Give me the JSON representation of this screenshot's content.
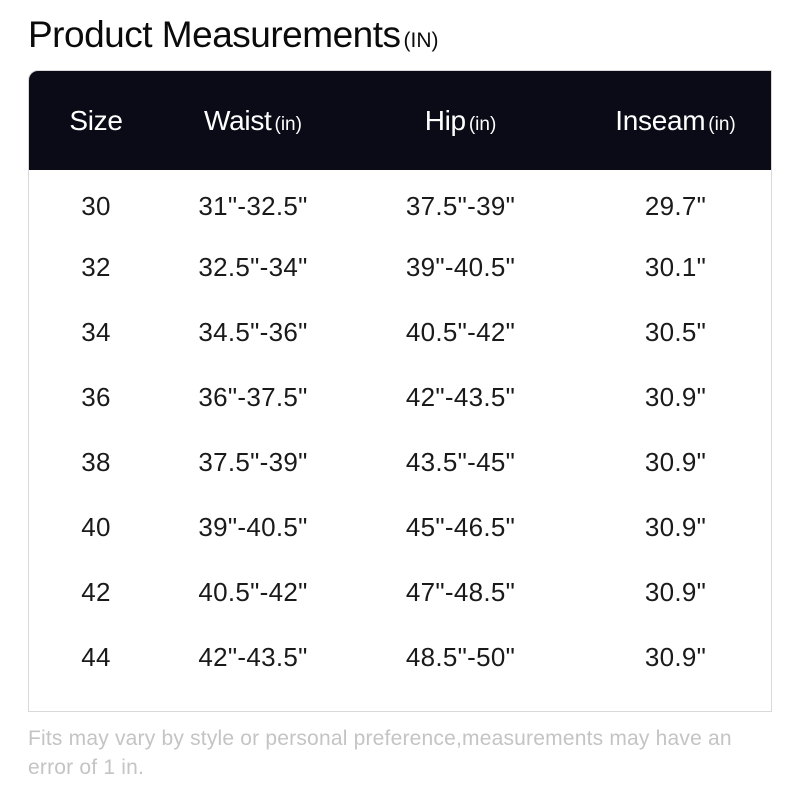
{
  "title": {
    "text": "Product Measurements",
    "unit": "(IN)"
  },
  "table": {
    "headers": [
      {
        "label": "Size",
        "unit": ""
      },
      {
        "label": "Waist",
        "unit": "(in)"
      },
      {
        "label": "Hip",
        "unit": "(in)"
      },
      {
        "label": "Inseam",
        "unit": "(in)"
      }
    ],
    "rows": [
      [
        "30",
        "31\"-32.5\"",
        "37.5\"-39\"",
        "29.7\""
      ],
      [
        "32",
        "32.5\"-34\"",
        "39\"-40.5\"",
        "30.1\""
      ],
      [
        "34",
        "34.5\"-36\"",
        "40.5\"-42\"",
        "30.5\""
      ],
      [
        "36",
        "36\"-37.5\"",
        "42\"-43.5\"",
        "30.9\""
      ],
      [
        "38",
        "37.5\"-39\"",
        "43.5\"-45\"",
        "30.9\""
      ],
      [
        "40",
        "39\"-40.5\"",
        "45\"-46.5\"",
        "30.9\""
      ],
      [
        "42",
        "40.5\"-42\"",
        "47\"-48.5\"",
        "30.9\""
      ],
      [
        "44",
        "42\"-43.5\"",
        "48.5\"-50\"",
        "30.9\""
      ]
    ]
  },
  "note": "Fits may vary by style or personal preference,measurements may have an error of 1 in.",
  "colors": {
    "header_bg": "#0b0a17",
    "header_text": "#ffffff",
    "note_text": "#c4c4c4"
  }
}
